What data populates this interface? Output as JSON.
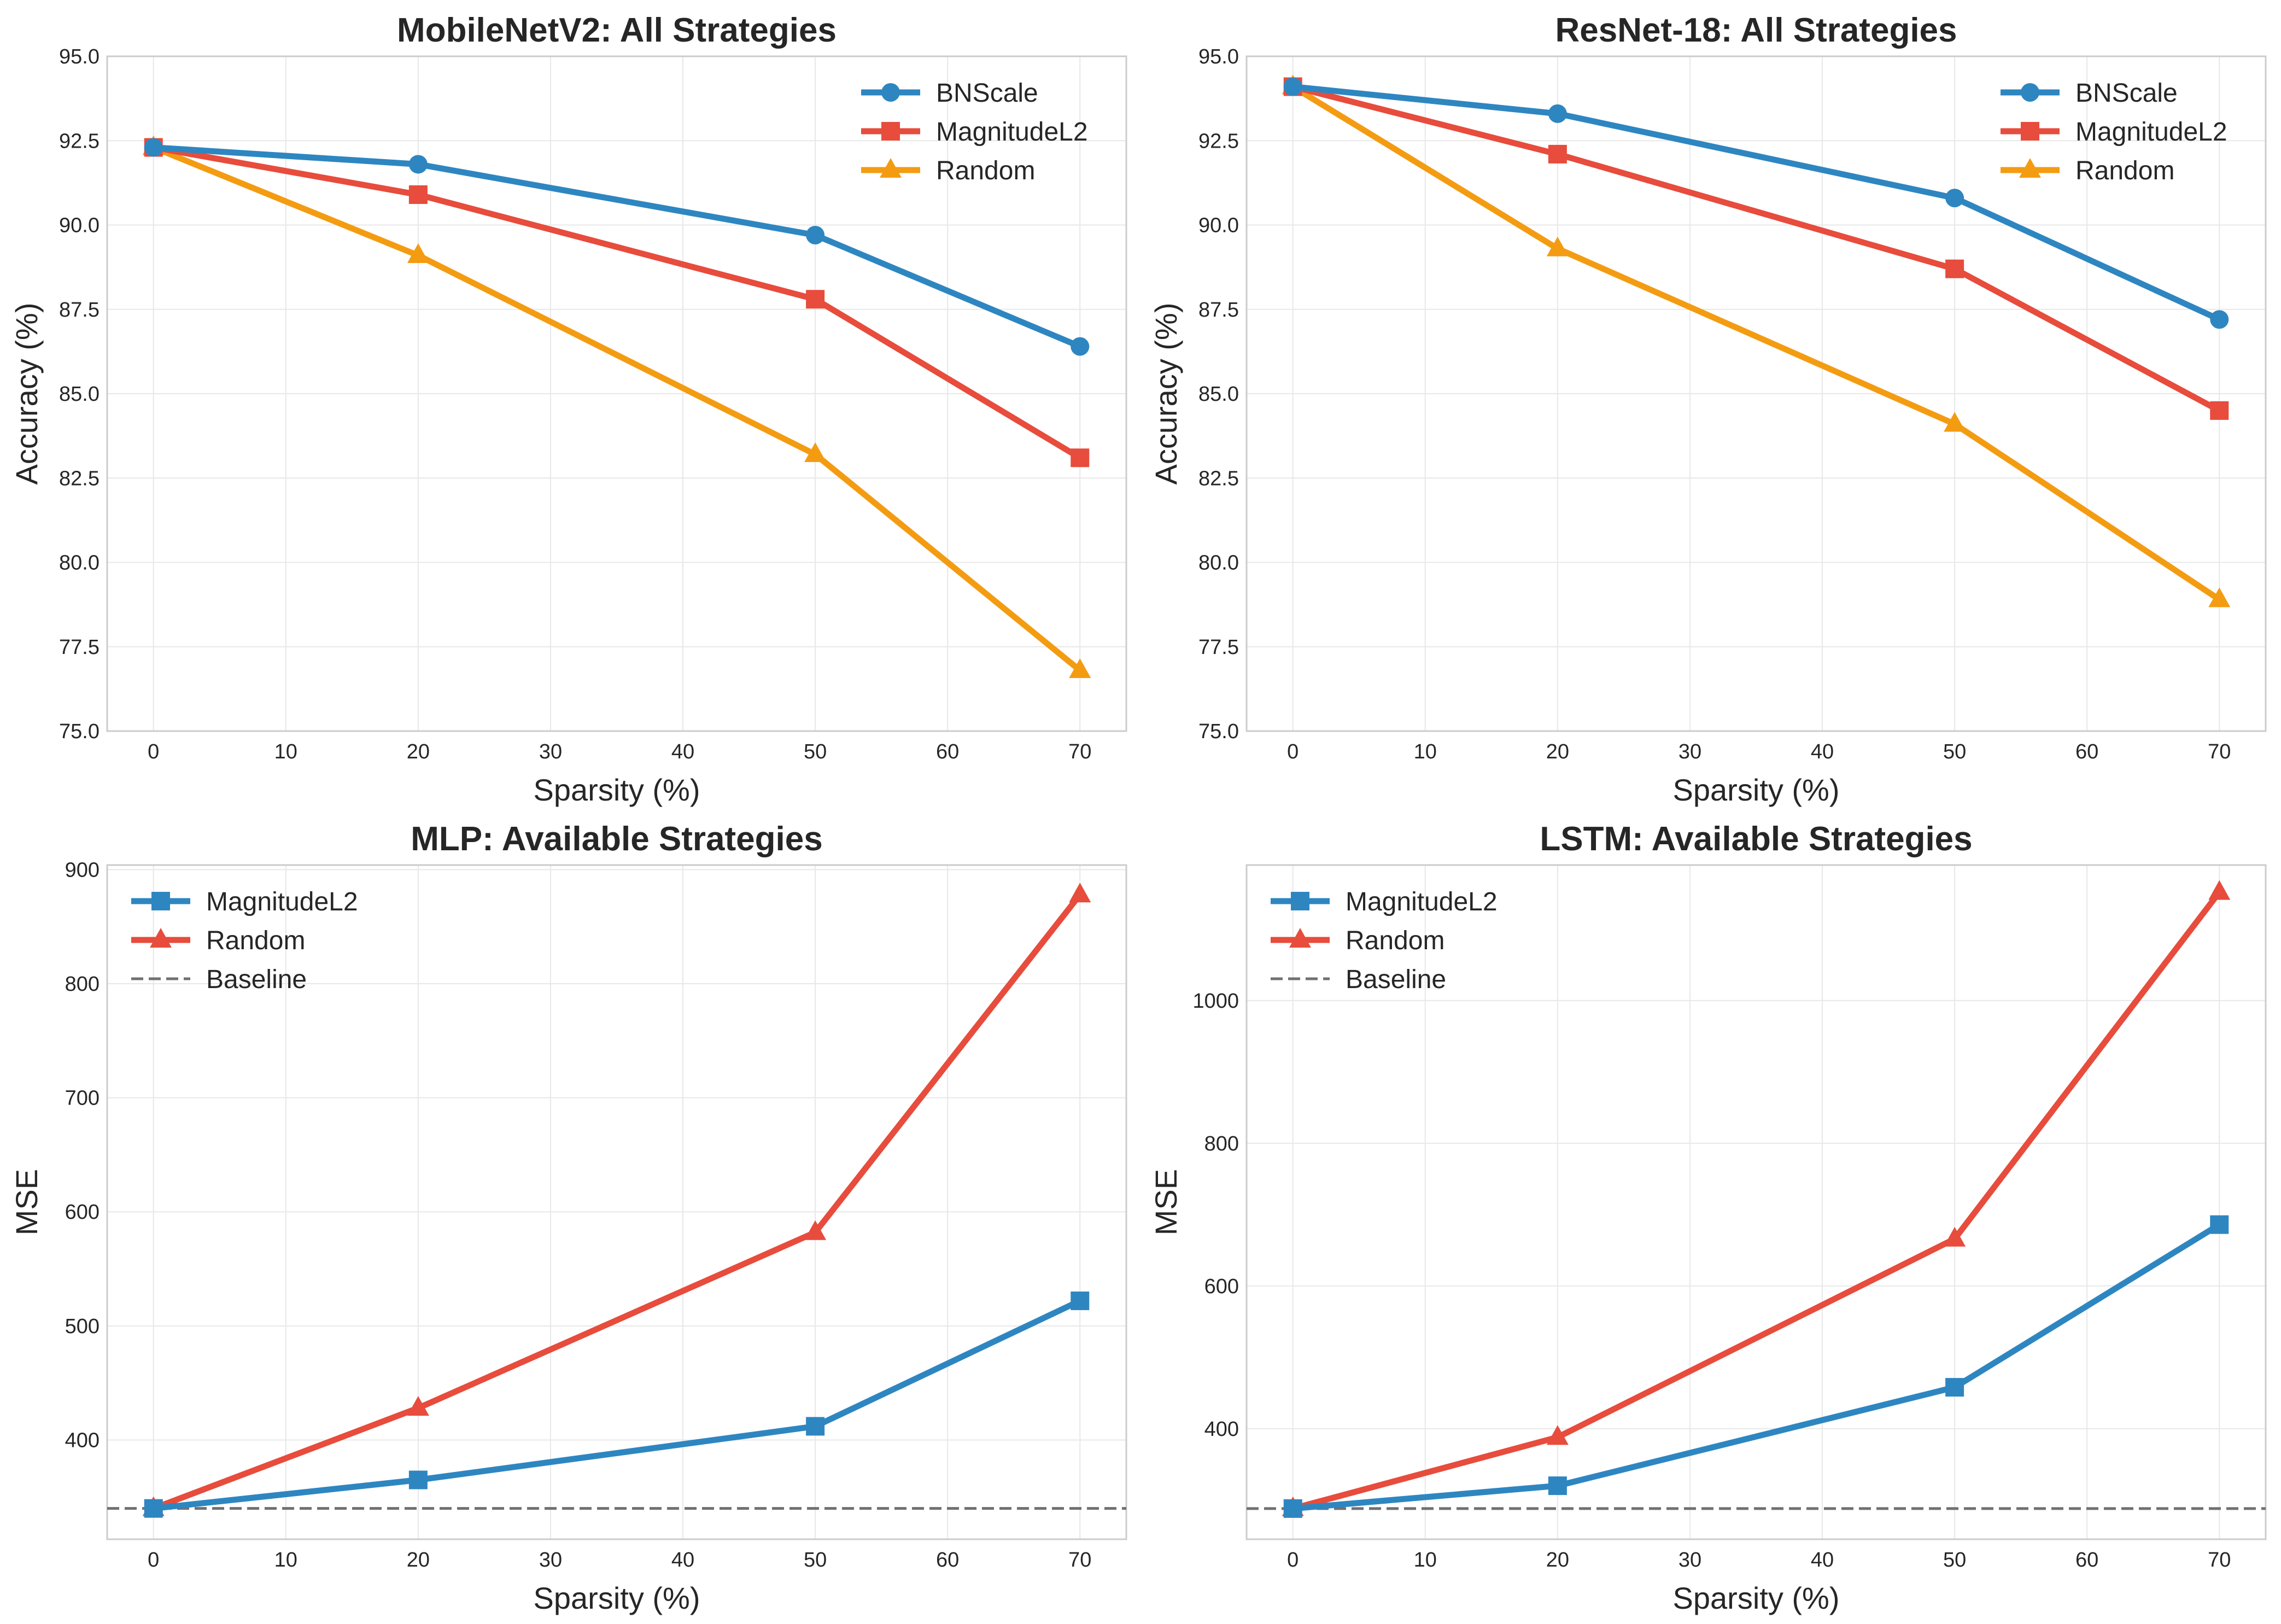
{
  "chart_data": [
    {
      "type": "line",
      "title": "MobileNetV2: All Strategies",
      "xlabel": "Sparsity (%)",
      "ylabel": "Accuracy (%)",
      "xlim": [
        -3.5,
        73.5
      ],
      "ylim": [
        75.0,
        95.0
      ],
      "xticks": [
        0,
        10,
        20,
        30,
        40,
        50,
        60,
        70
      ],
      "yticks": [
        75.0,
        77.5,
        80.0,
        82.5,
        85.0,
        87.5,
        90.0,
        92.5,
        95.0
      ],
      "ytick_labels": [
        "75.0",
        "77.5",
        "80.0",
        "82.5",
        "85.0",
        "87.5",
        "90.0",
        "92.5",
        "95.0"
      ],
      "grid": true,
      "legend_position": "top-right",
      "x": [
        0,
        20,
        50,
        70
      ],
      "series": [
        {
          "name": "BNScale",
          "marker": "circle",
          "color": "#2E86C1",
          "values": [
            92.3,
            91.8,
            89.7,
            86.4
          ]
        },
        {
          "name": "MagnitudeL2",
          "marker": "square",
          "color": "#E74C3C",
          "values": [
            92.3,
            90.9,
            87.8,
            83.1
          ]
        },
        {
          "name": "Random",
          "marker": "triangle",
          "color": "#F39C12",
          "values": [
            92.3,
            89.1,
            83.2,
            76.8
          ]
        }
      ]
    },
    {
      "type": "line",
      "title": "ResNet-18: All Strategies",
      "xlabel": "Sparsity (%)",
      "ylabel": "Accuracy (%)",
      "xlim": [
        -3.5,
        73.5
      ],
      "ylim": [
        75.0,
        95.0
      ],
      "xticks": [
        0,
        10,
        20,
        30,
        40,
        50,
        60,
        70
      ],
      "yticks": [
        75.0,
        77.5,
        80.0,
        82.5,
        85.0,
        87.5,
        90.0,
        92.5,
        95.0
      ],
      "ytick_labels": [
        "75.0",
        "77.5",
        "80.0",
        "82.5",
        "85.0",
        "87.5",
        "90.0",
        "92.5",
        "95.0"
      ],
      "grid": true,
      "legend_position": "top-right",
      "x": [
        0,
        20,
        50,
        70
      ],
      "series": [
        {
          "name": "BNScale",
          "marker": "circle",
          "color": "#2E86C1",
          "values": [
            94.1,
            93.3,
            90.8,
            87.2
          ]
        },
        {
          "name": "MagnitudeL2",
          "marker": "square",
          "color": "#E74C3C",
          "values": [
            94.1,
            92.1,
            88.7,
            84.5
          ]
        },
        {
          "name": "Random",
          "marker": "triangle",
          "color": "#F39C12",
          "values": [
            94.1,
            89.3,
            84.1,
            78.9
          ]
        }
      ]
    },
    {
      "type": "line",
      "title": "MLP: Available Strategies",
      "xlabel": "Sparsity (%)",
      "ylabel": "MSE",
      "xlim": [
        -3.5,
        73.5
      ],
      "ylim": [
        313,
        904
      ],
      "xticks": [
        0,
        10,
        20,
        30,
        40,
        50,
        60,
        70
      ],
      "yticks": [
        400,
        500,
        600,
        700,
        800,
        900
      ],
      "ytick_labels": [
        "400",
        "500",
        "600",
        "700",
        "800",
        "900"
      ],
      "grid": true,
      "legend_position": "top-left",
      "x": [
        0,
        20,
        50,
        70
      ],
      "series": [
        {
          "name": "MagnitudeL2",
          "marker": "square",
          "color": "#2E86C1",
          "values": [
            340,
            365,
            412,
            522
          ]
        },
        {
          "name": "Random",
          "marker": "triangle",
          "color": "#E74C3C",
          "values": [
            340,
            428,
            582,
            878
          ]
        }
      ],
      "baseline": {
        "name": "Baseline",
        "value": 340,
        "color": "#707070"
      }
    },
    {
      "type": "line",
      "title": "LSTM: Available Strategies",
      "xlabel": "Sparsity (%)",
      "ylabel": "MSE",
      "xlim": [
        -3.5,
        73.5
      ],
      "ylim": [
        245,
        1190
      ],
      "xticks": [
        0,
        10,
        20,
        30,
        40,
        50,
        60,
        70
      ],
      "yticks": [
        400,
        600,
        800,
        1000
      ],
      "ytick_labels": [
        "400",
        "600",
        "800",
        "1000"
      ],
      "grid": true,
      "legend_position": "top-left",
      "x": [
        0,
        20,
        50,
        70
      ],
      "series": [
        {
          "name": "MagnitudeL2",
          "marker": "square",
          "color": "#2E86C1",
          "values": [
            288,
            320,
            458,
            686
          ]
        },
        {
          "name": "Random",
          "marker": "triangle",
          "color": "#E74C3C",
          "values": [
            288,
            388,
            666,
            1152
          ]
        }
      ],
      "baseline": {
        "name": "Baseline",
        "value": 288,
        "color": "#707070"
      }
    }
  ]
}
